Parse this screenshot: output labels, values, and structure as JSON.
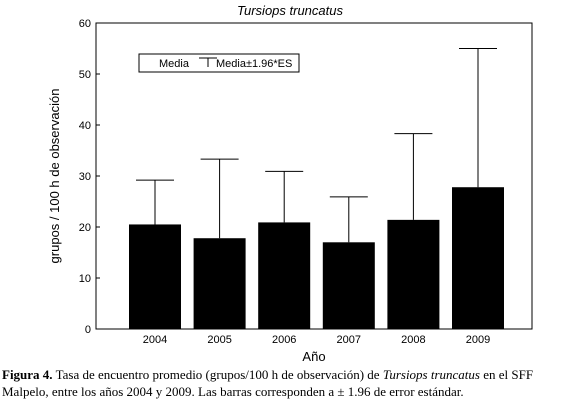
{
  "chart_data": {
    "type": "bar",
    "title": "Tursiops truncatus",
    "xlabel": "Año",
    "ylabel": "grupos / 100 h  de observación",
    "categories": [
      "2004",
      "2005",
      "2006",
      "2007",
      "2008",
      "2009"
    ],
    "series": [
      {
        "name": "Media",
        "values": [
          20.5,
          17.8,
          20.9,
          17.0,
          21.4,
          27.8
        ]
      }
    ],
    "error_upper": [
      29.2,
      33.3,
      30.9,
      25.9,
      38.3,
      55.0
    ],
    "error_label": "Media±1.96*ES",
    "ylim": [
      0,
      60
    ],
    "yticks": [
      "0",
      "10",
      "20",
      "30",
      "40",
      "50",
      "60"
    ],
    "grid": false,
    "legend": "top-left",
    "colors": {
      "bar": "#000000",
      "axis": "#000000"
    }
  },
  "caption": {
    "label": "Figura 4.",
    "text_before": "Tasa de encuentro promedio (grupos/100 h de observación) de",
    "species": "Tursiops truncatus",
    "text_after": "en el SFF Malpelo, entre los años 2004 y 2009. Las barras corresponden a ± 1.96 de error estándar."
  }
}
